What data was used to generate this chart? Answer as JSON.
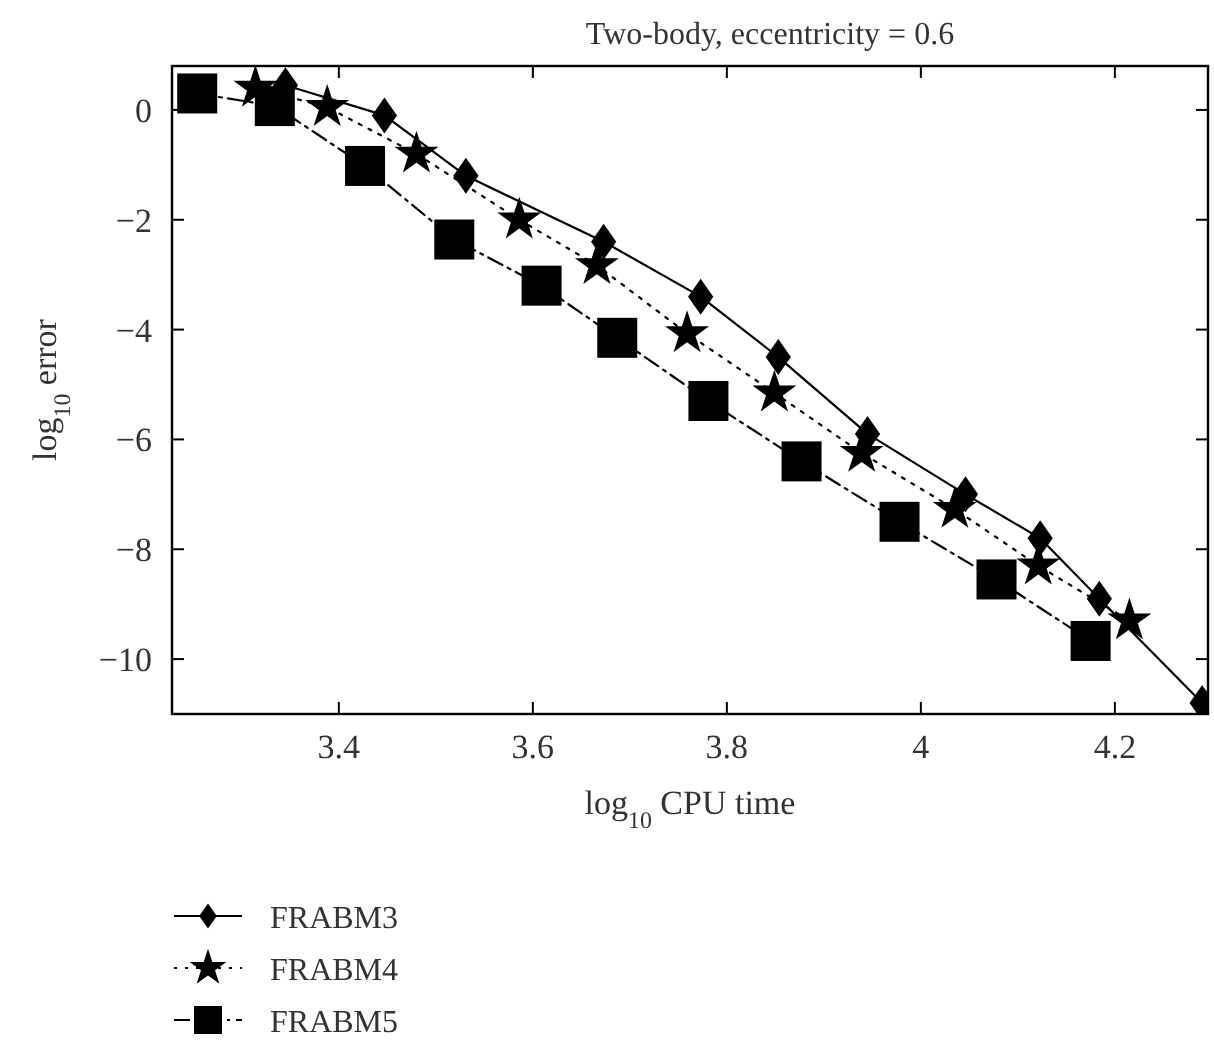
{
  "chart_data": {
    "type": "line",
    "title": "Two-body, eccentricity = 0.6",
    "xlabel": "log$_{10}$ CPU time",
    "ylabel": "log$_{10}$ error",
    "xlim": [
      3.228,
      4.296
    ],
    "xticks": [
      3.4,
      3.6,
      3.8,
      4,
      4.2
    ],
    "ylim": [
      -11,
      0.8
    ],
    "yticks": [
      0,
      -2,
      -4,
      -6,
      -8,
      -10
    ],
    "grid": false,
    "legend": "bottom left",
    "series": [
      {
        "name": "FRABM3",
        "color": "#000000",
        "marker": "diamond",
        "line_style": "solid",
        "x": [
          3.345,
          3.447,
          3.531,
          3.673,
          3.773,
          3.853,
          3.945,
          4.046,
          4.123,
          4.184,
          4.29
        ],
        "values": [
          0.45,
          -0.1,
          -1.2,
          -2.4,
          -3.4,
          -4.5,
          -5.9,
          -7.0,
          -7.8,
          -8.9,
          -10.8
        ]
      },
      {
        "name": "FRABM4",
        "color": "#000000",
        "marker": "star",
        "line_style": "dotted",
        "x": [
          3.314,
          3.388,
          3.48,
          3.586,
          3.666,
          3.759,
          3.849,
          3.939,
          4.035,
          4.121,
          4.215
        ],
        "values": [
          0.4,
          0.05,
          -0.8,
          -2.0,
          -2.83,
          -4.07,
          -5.15,
          -6.25,
          -7.27,
          -8.3,
          -9.3
        ]
      },
      {
        "name": "FRABM5",
        "color": "#000000",
        "marker": "square",
        "line_style": "dashed",
        "x": [
          3.254,
          3.334,
          3.427,
          3.519,
          3.609,
          3.687,
          3.781,
          3.877,
          3.978,
          4.078,
          4.175
        ],
        "values": [
          0.3,
          0.07,
          -1.02,
          -2.36,
          -3.2,
          -4.15,
          -5.3,
          -6.4,
          -7.5,
          -8.55,
          -9.67
        ]
      }
    ]
  }
}
